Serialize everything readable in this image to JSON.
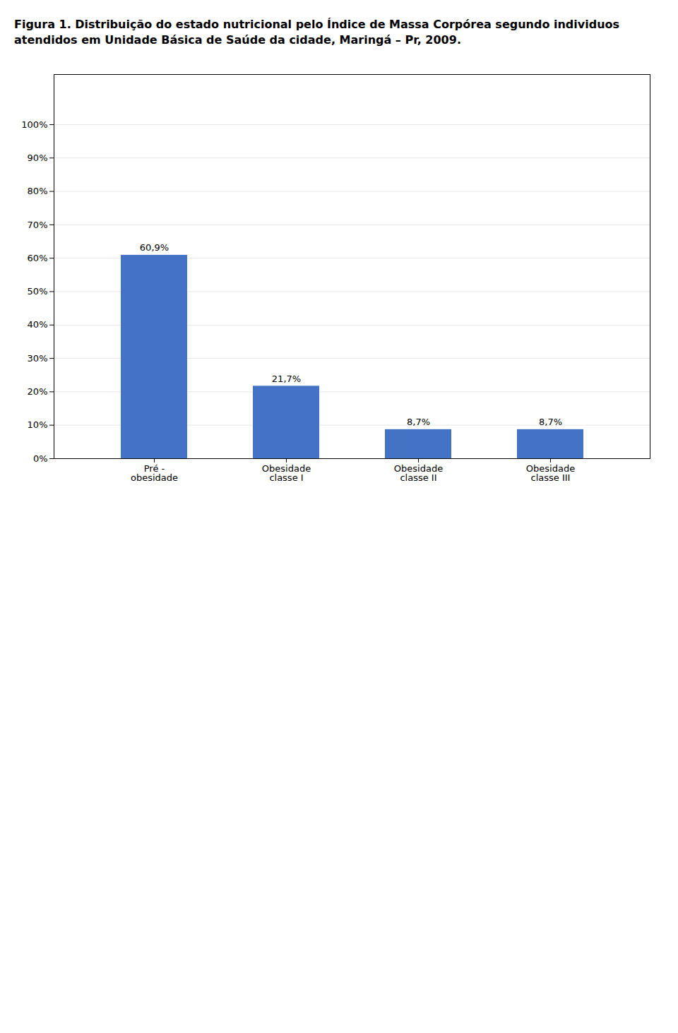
{
  "chart_data": {
    "type": "bar",
    "title": "Figura 1.  Distribuição do estado nutricional pelo Índice de Massa Corpórea segundo individuos atendidos em Unidade Básica de Saúde da cidade, Maringá – Pr, 2009.",
    "categories": [
      "Pré -\nobesidade",
      "Obesidade\nclasse I",
      "Obesidade\nclasse II",
      "Obesidade\nclasse III"
    ],
    "values": [
      60.9,
      21.7,
      8.7,
      8.7
    ],
    "value_labels": [
      "60,9%",
      "21,7%",
      "8,7%",
      "8,7%"
    ],
    "data_labels": true,
    "color": "#4472C4",
    "ylim": [
      0,
      115
    ],
    "yticks": [
      {
        "value": 0,
        "label": "0%"
      },
      {
        "value": 10,
        "label": "10%"
      },
      {
        "value": 20,
        "label": "20%"
      },
      {
        "value": 30,
        "label": "30%"
      },
      {
        "value": 40,
        "label": "40%"
      },
      {
        "value": 50,
        "label": "50%"
      },
      {
        "value": 60,
        "label": "60%"
      },
      {
        "value": 70,
        "label": "70%"
      },
      {
        "value": 80,
        "label": "80%"
      },
      {
        "value": 90,
        "label": "90%"
      },
      {
        "value": 100,
        "label": "100%"
      }
    ],
    "grid": true
  }
}
